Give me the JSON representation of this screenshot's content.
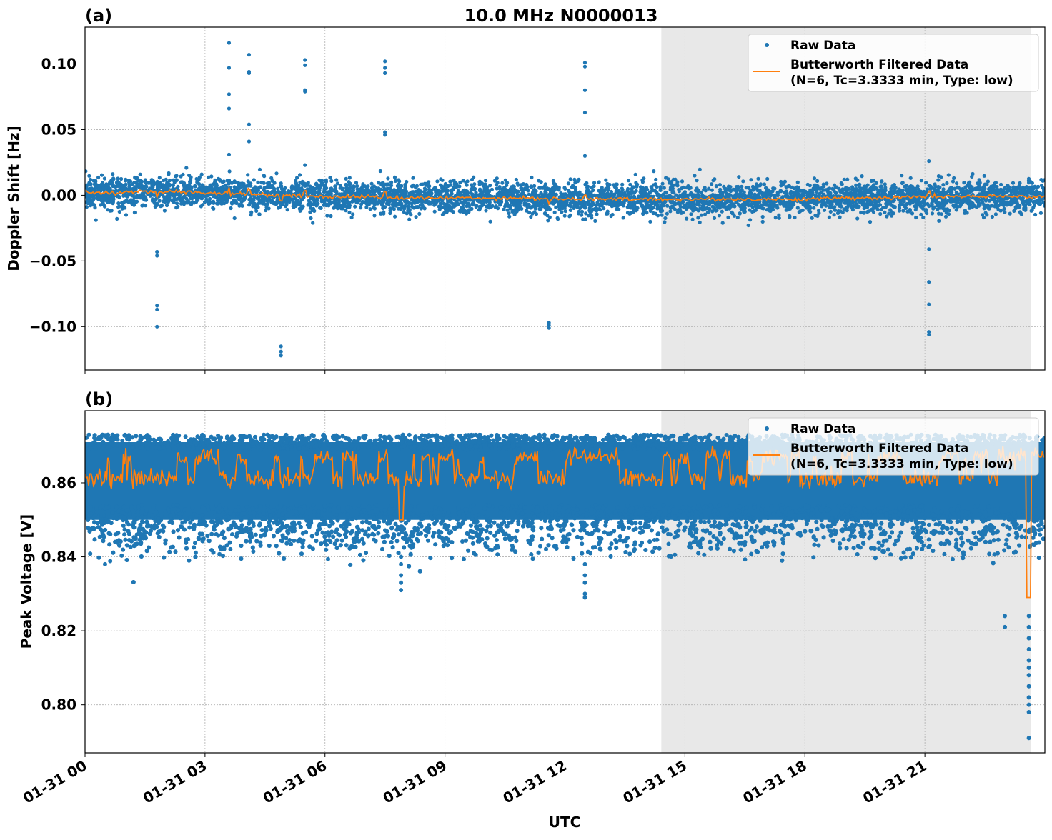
{
  "title": "10.0 MHz N0000013",
  "colors": {
    "raw": "#1f77b4",
    "filtered": "#ff7f0e",
    "shade": "#e8e8e8"
  },
  "chart_data": [
    {
      "panel_label": "(a)",
      "type": "scatter+line",
      "ylabel": "Doppler Shift [Hz]",
      "xlim_hours": [
        0,
        24
      ],
      "ylim": [
        -0.133,
        0.128
      ],
      "yticks": [
        0.1,
        0.05,
        0.0,
        -0.05,
        -0.1
      ],
      "ytick_labels": [
        "0.10",
        "0.05",
        "0.00",
        "−0.05",
        "−0.10"
      ],
      "grid": true,
      "shaded_hours": [
        14.41,
        23.66
      ],
      "legend": {
        "placement": "upper right",
        "entries": [
          "Raw Data",
          "Butterworth Filtered Data",
          "(N=6, Tc=3.3333 min, Type: low)"
        ]
      },
      "filtered_hourly": [
        0.002,
        0.002,
        0.003,
        0.002,
        0.001,
        0.0,
        -0.001,
        -0.001,
        -0.002,
        -0.002,
        -0.002,
        -0.002,
        -0.003,
        -0.003,
        -0.003,
        -0.003,
        -0.003,
        -0.003,
        -0.003,
        -0.002,
        -0.002,
        -0.001,
        -0.001,
        -0.001,
        -0.001
      ],
      "raw_spread": 0.006,
      "outliers": [
        {
          "h": 1.8,
          "v": [
            -0.043,
            -0.046,
            -0.084,
            -0.087,
            -0.1
          ]
        },
        {
          "h": 3.6,
          "v": [
            0.116,
            0.097,
            0.077,
            0.066,
            0.031
          ]
        },
        {
          "h": 4.1,
          "v": [
            0.107,
            0.094,
            0.093,
            0.054,
            0.041
          ]
        },
        {
          "h": 4.9,
          "v": [
            -0.115,
            -0.119,
            -0.122
          ]
        },
        {
          "h": 5.5,
          "v": [
            0.103,
            0.099,
            0.08,
            0.079,
            0.023
          ]
        },
        {
          "h": 7.5,
          "v": [
            0.102,
            0.097,
            0.093,
            0.048,
            0.046
          ]
        },
        {
          "h": 11.6,
          "v": [
            -0.097,
            -0.099,
            -0.101
          ]
        },
        {
          "h": 12.5,
          "v": [
            0.101,
            0.098,
            0.08,
            0.063,
            0.03
          ]
        },
        {
          "h": 21.1,
          "v": [
            0.026,
            -0.041,
            -0.066,
            -0.083,
            -0.104,
            -0.106
          ]
        }
      ]
    },
    {
      "panel_label": "(b)",
      "type": "scatter+line",
      "ylabel": "Peak Voltage [V]",
      "xlabel": "UTC",
      "xlim_hours": [
        0,
        24
      ],
      "ylim": [
        0.787,
        0.8795
      ],
      "yticks": [
        0.86,
        0.84,
        0.82,
        0.8
      ],
      "ytick_labels": [
        "0.86",
        "0.84",
        "0.82",
        "0.80"
      ],
      "grid": true,
      "shaded_hours": [
        14.41,
        23.66
      ],
      "legend": {
        "placement": "upper right",
        "entries": [
          "Raw Data",
          "Butterworth Filtered Data",
          "(N=6, Tc=3.3333 min, Type: low)"
        ]
      },
      "raw_upper": 0.873,
      "raw_lower": 0.846,
      "filtered_base": 0.861,
      "filtered_high": 0.867,
      "outliers": [
        {
          "h": 0.5,
          "v": [
            0.838
          ]
        },
        {
          "h": 2.6,
          "v": [
            0.839
          ]
        },
        {
          "h": 7.9,
          "v": [
            0.84,
            0.838,
            0.835,
            0.833,
            0.831
          ]
        },
        {
          "h": 12.5,
          "v": [
            0.838,
            0.835,
            0.833,
            0.83,
            0.829
          ]
        },
        {
          "h": 23.0,
          "v": [
            0.824,
            0.821
          ]
        },
        {
          "h": 23.6,
          "v": [
            0.824,
            0.821,
            0.818,
            0.815,
            0.812,
            0.81,
            0.808,
            0.805,
            0.802,
            0.8,
            0.798,
            0.791
          ]
        }
      ],
      "dips": [
        {
          "h": 7.9,
          "v": 0.85
        },
        {
          "h": 23.6,
          "v": 0.829
        }
      ]
    }
  ],
  "xtick_labels": [
    "01-31 00",
    "01-31 03",
    "01-31 06",
    "01-31 09",
    "01-31 12",
    "01-31 15",
    "01-31 18",
    "01-31 21"
  ],
  "xtick_hours": [
    0,
    3,
    6,
    9,
    12,
    15,
    18,
    21
  ]
}
